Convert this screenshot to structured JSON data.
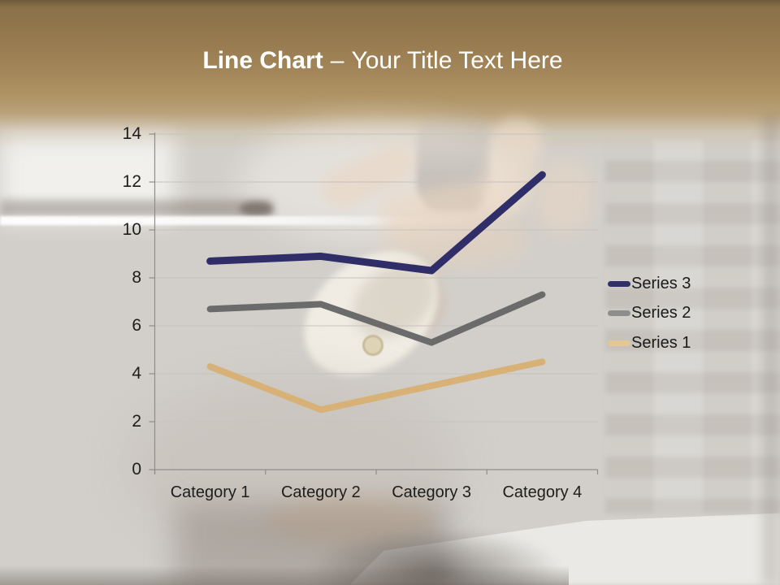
{
  "title": {
    "bold": "Line Chart",
    "dash": "–",
    "rest": "Your Title Text Here"
  },
  "chart_data": {
    "type": "line",
    "title": "",
    "categories": [
      "Category 1",
      "Category 2",
      "Category 3",
      "Category 4"
    ],
    "series": [
      {
        "name": "Series 1",
        "color": "#d7b175",
        "values": [
          4.3,
          2.5,
          3.5,
          4.5
        ]
      },
      {
        "name": "Series 2",
        "color": "#6b6b6b",
        "values": [
          6.7,
          6.9,
          5.3,
          7.3
        ]
      },
      {
        "name": "Series 3",
        "color": "#302e68",
        "values": [
          8.7,
          8.9,
          8.3,
          12.3
        ]
      }
    ],
    "y_ticks": [
      0,
      2,
      4,
      6,
      8,
      10,
      12,
      14
    ],
    "ylim": [
      0,
      14
    ],
    "xlabel": "",
    "ylabel": "",
    "grid": "horizontal",
    "legend_position": "right"
  },
  "legend": {
    "items": [
      {
        "label": "Series 3",
        "color": "#302e68"
      },
      {
        "label": "Series 2",
        "color": "#8d8d8d"
      },
      {
        "label": "Series 1",
        "color": "#e4c794"
      }
    ]
  },
  "colors": {
    "title_text": "#ffffff",
    "header_gold": "#a3875a",
    "axis": "#8f8d89",
    "gridline": "#c6c3be",
    "tick_label": "#1d1d1b"
  }
}
